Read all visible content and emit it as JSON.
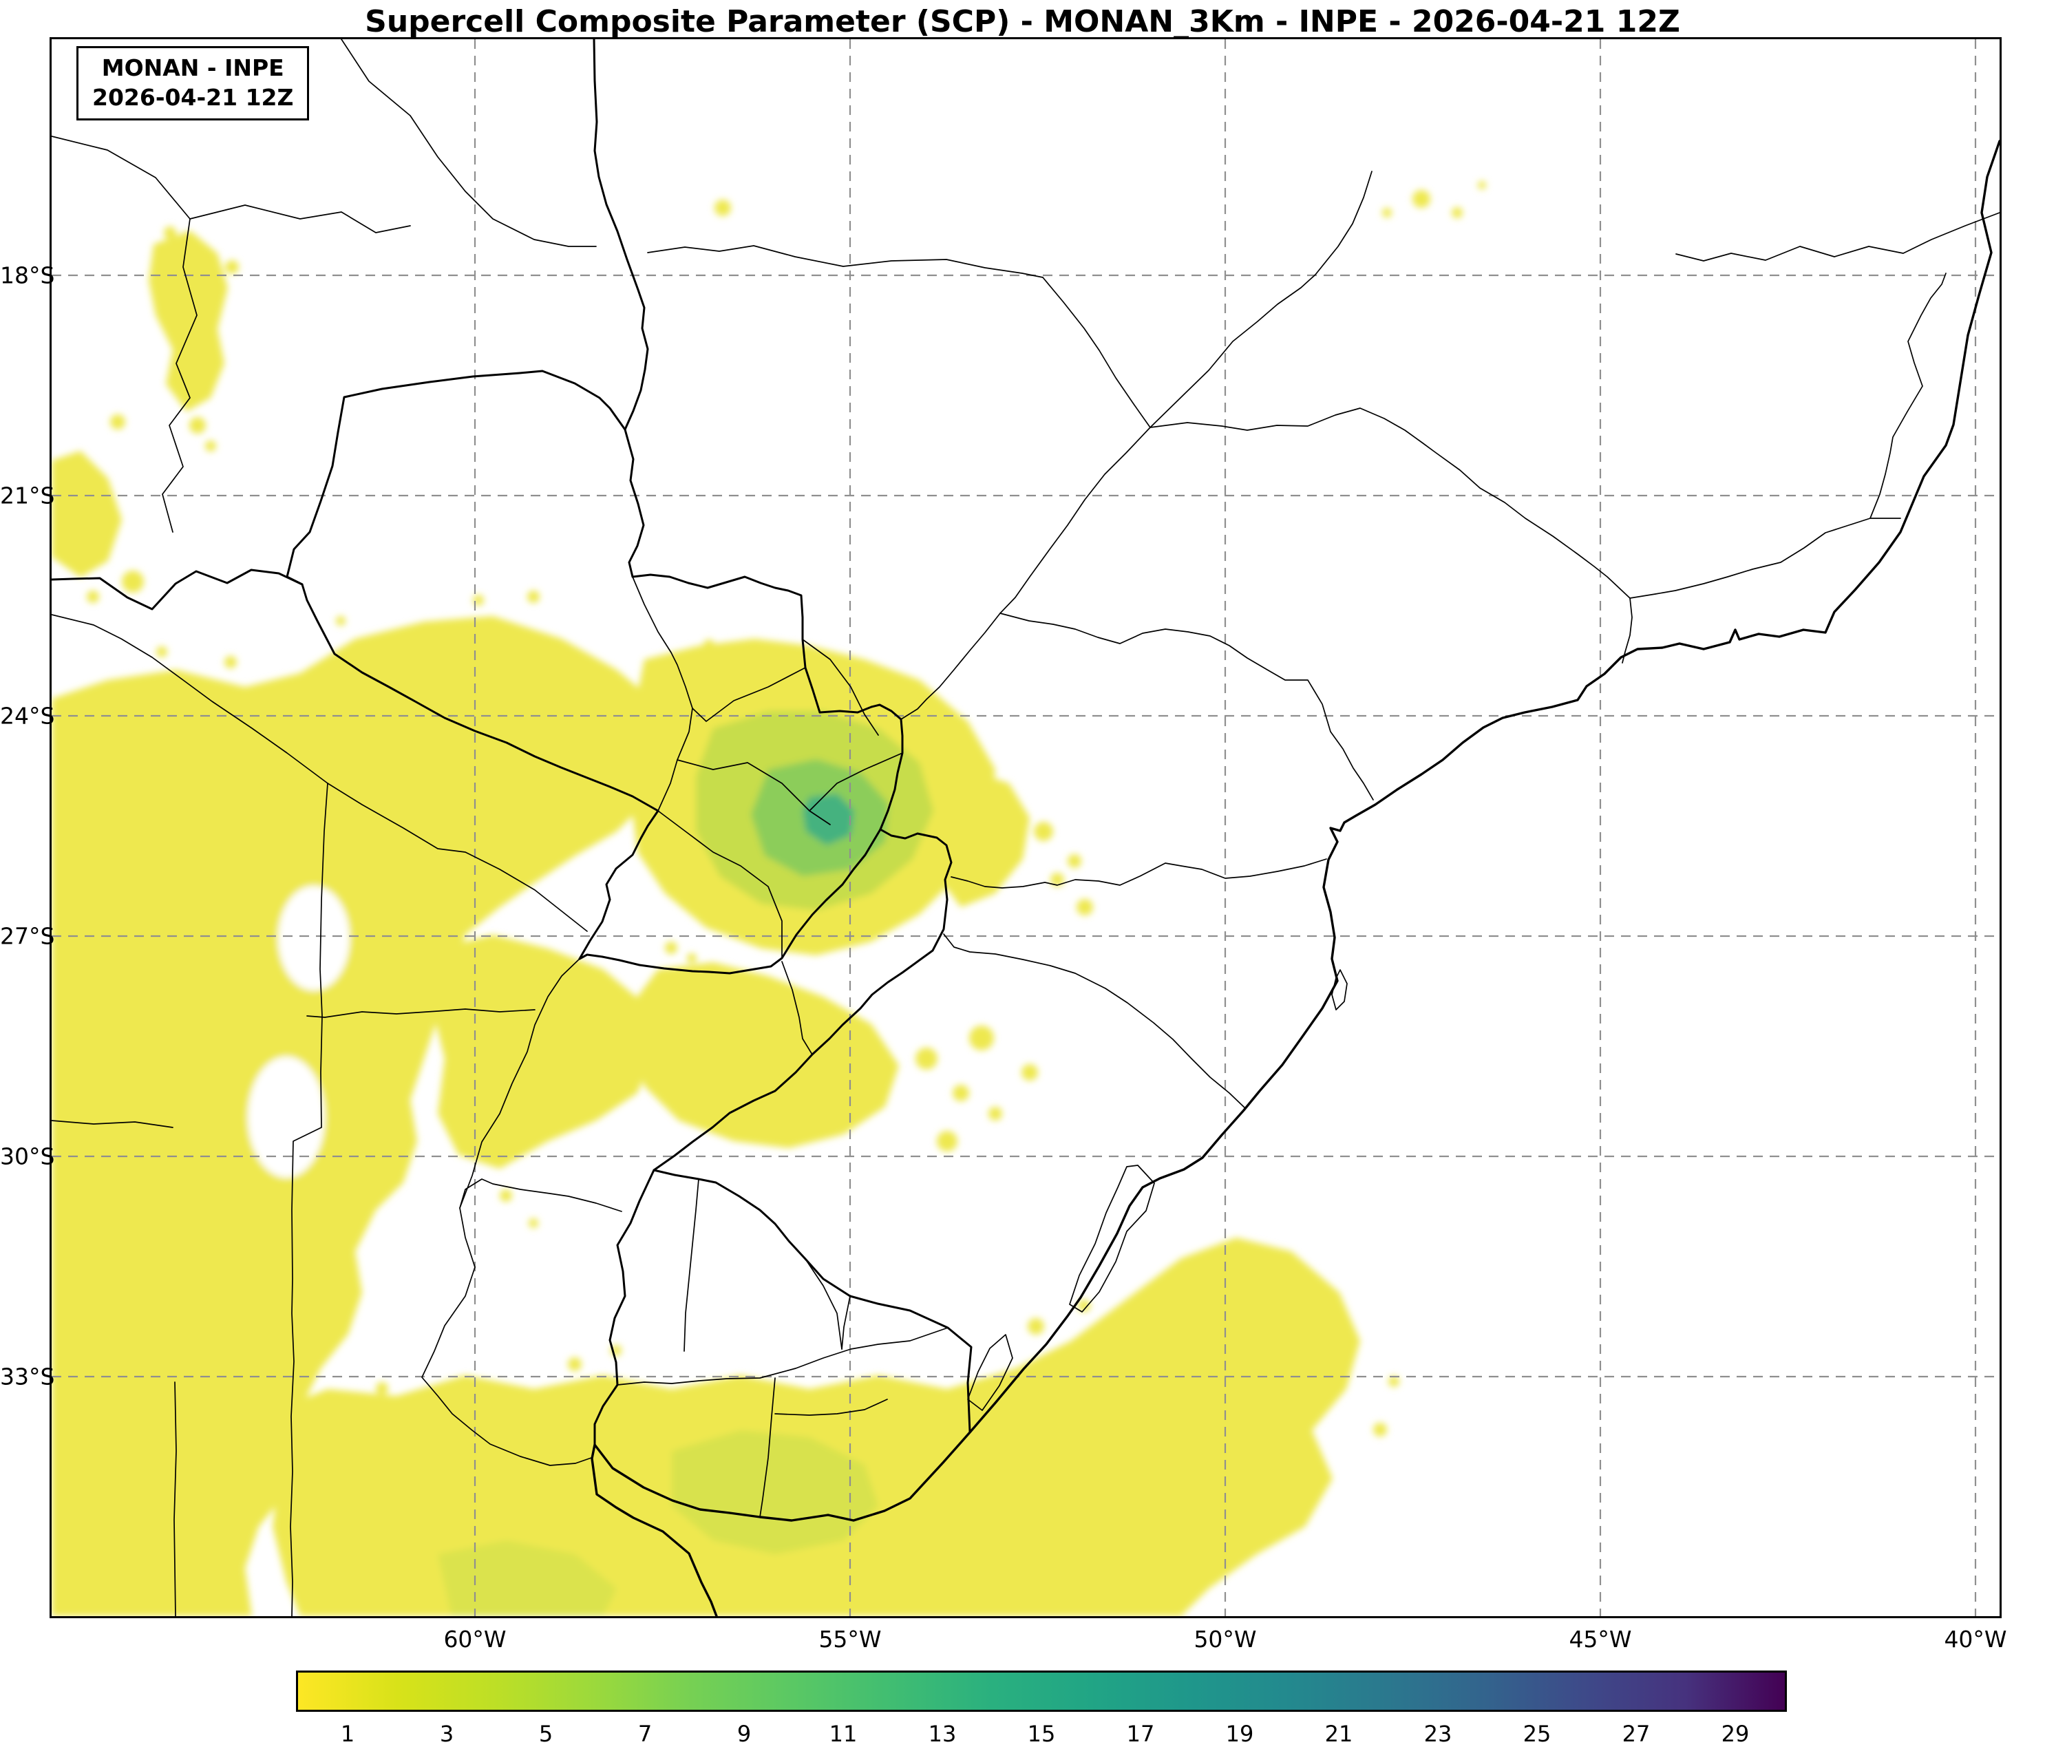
{
  "title": "Supercell Composite Parameter (SCP) - MONAN_3Km - INPE - 2026-04-21 12Z",
  "info_box": {
    "line1": "MONAN - INPE",
    "line2": "2026-04-21 12Z"
  },
  "axes": {
    "lat_labels": [
      "18°S",
      "21°S",
      "24°S",
      "27°S",
      "30°S",
      "33°S"
    ],
    "lon_labels": [
      "60°W",
      "55°W",
      "50°W",
      "45°W",
      "40°W"
    ]
  },
  "colorbar": {
    "min": 0,
    "max": 30,
    "tick_labels": [
      "1",
      "3",
      "5",
      "7",
      "9",
      "11",
      "13",
      "15",
      "17",
      "19",
      "21",
      "23",
      "25",
      "27",
      "29"
    ],
    "gradient_colors": [
      "#fde725",
      "#d8e219",
      "#bddf26",
      "#9bd93c",
      "#75d054",
      "#5ac864",
      "#40bd72",
      "#2ab07f",
      "#21a585",
      "#1f978b",
      "#23898e",
      "#2b788e",
      "#33638d",
      "#3e4989",
      "#46327e",
      "#440154"
    ]
  },
  "field_colors": {
    "scp_low": "#eee850",
    "scp_mid": "#c7dd4b",
    "scp_high": "#8ccd5a",
    "scp_core": "#45b27f"
  },
  "map_style": {
    "gridline_color": "#8f8f8f",
    "boundary_color": "#000000",
    "ocean_land_color": "#ffffff"
  }
}
